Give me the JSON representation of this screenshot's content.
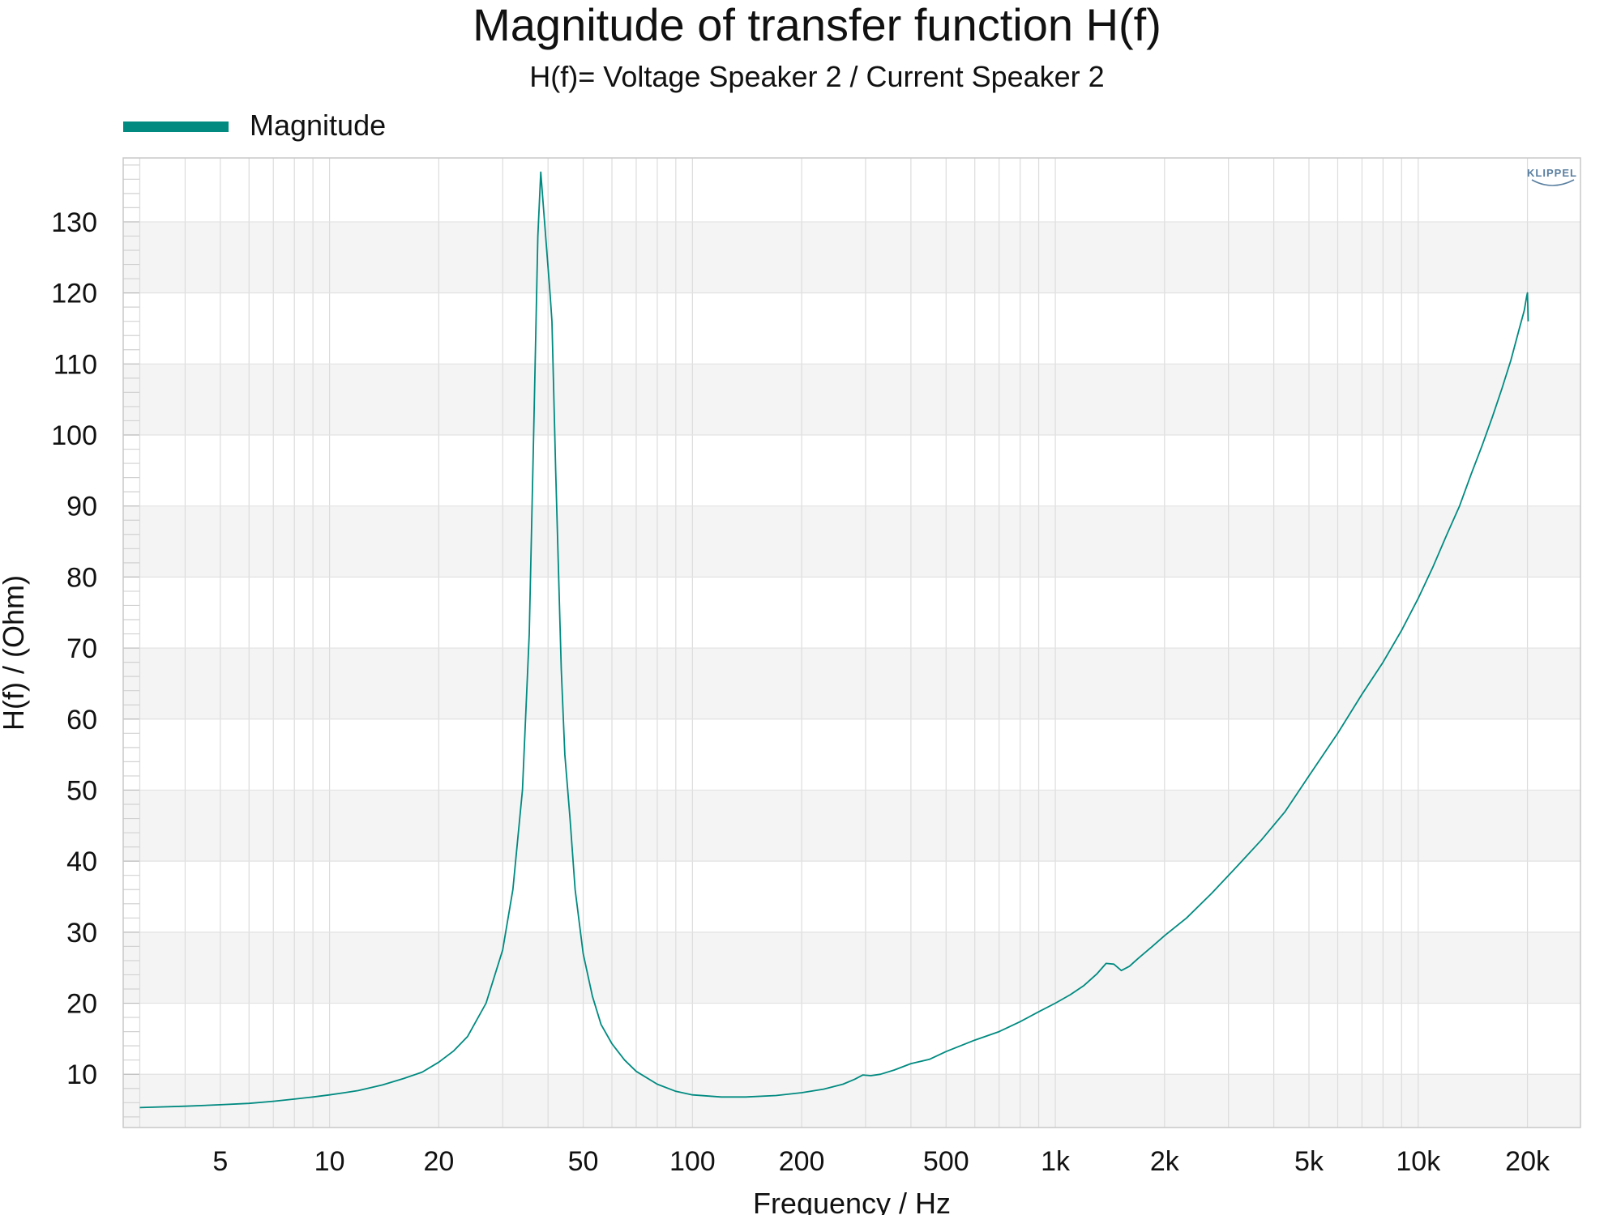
{
  "chart_data": {
    "type": "line",
    "title": "Magnitude of transfer function H(f)",
    "subtitle": "H(f)= Voltage Speaker 2 / Current Speaker 2",
    "xlabel": "Frequency / Hz",
    "ylabel": "H(f) / (Ohm)",
    "xscale": "log",
    "xlim": [
      2.7,
      28000
    ],
    "ylim": [
      2.5,
      139
    ],
    "grid": true,
    "legend_position": "top-left",
    "x_ticks": [
      {
        "value": 5,
        "label": "5"
      },
      {
        "value": 10,
        "label": "10"
      },
      {
        "value": 20,
        "label": "20"
      },
      {
        "value": 50,
        "label": "50"
      },
      {
        "value": 100,
        "label": "100"
      },
      {
        "value": 200,
        "label": "200"
      },
      {
        "value": 500,
        "label": "500"
      },
      {
        "value": 1000,
        "label": "1k"
      },
      {
        "value": 2000,
        "label": "2k"
      },
      {
        "value": 5000,
        "label": "5k"
      },
      {
        "value": 10000,
        "label": "10k"
      },
      {
        "value": 20000,
        "label": "20k"
      }
    ],
    "y_ticks": [
      {
        "value": 10,
        "label": "10"
      },
      {
        "value": 20,
        "label": "20"
      },
      {
        "value": 30,
        "label": "30"
      },
      {
        "value": 40,
        "label": "40"
      },
      {
        "value": 50,
        "label": "50"
      },
      {
        "value": 60,
        "label": "60"
      },
      {
        "value": 70,
        "label": "70"
      },
      {
        "value": 80,
        "label": "80"
      },
      {
        "value": 90,
        "label": "90"
      },
      {
        "value": 100,
        "label": "100"
      },
      {
        "value": 110,
        "label": "110"
      },
      {
        "value": 120,
        "label": "120"
      },
      {
        "value": 130,
        "label": "130"
      }
    ],
    "series": [
      {
        "name": "Magnitude",
        "color": "#008a80",
        "points": [
          [
            3.0,
            5.3
          ],
          [
            4.0,
            5.5
          ],
          [
            5.0,
            5.7
          ],
          [
            6.0,
            5.9
          ],
          [
            7.0,
            6.2
          ],
          [
            8.0,
            6.5
          ],
          [
            9.0,
            6.8
          ],
          [
            10.0,
            7.1
          ],
          [
            11.0,
            7.4
          ],
          [
            12.0,
            7.7
          ],
          [
            14.0,
            8.5
          ],
          [
            16.0,
            9.4
          ],
          [
            18.0,
            10.3
          ],
          [
            20.0,
            11.7
          ],
          [
            22.0,
            13.3
          ],
          [
            24.0,
            15.3
          ],
          [
            27.0,
            20.0
          ],
          [
            30.0,
            27.5
          ],
          [
            32.0,
            36.0
          ],
          [
            34.0,
            50.0
          ],
          [
            35.5,
            72.0
          ],
          [
            36.5,
            100.0
          ],
          [
            37.5,
            128.0
          ],
          [
            38.2,
            137.0
          ],
          [
            39.0,
            131.0
          ],
          [
            40.5,
            120.0
          ],
          [
            41.0,
            116.0
          ],
          [
            42.0,
            95.0
          ],
          [
            43.5,
            67.0
          ],
          [
            44.5,
            55.0
          ],
          [
            46.0,
            46.0
          ],
          [
            47.5,
            36.0
          ],
          [
            50.0,
            27.0
          ],
          [
            53.0,
            21.0
          ],
          [
            56.0,
            17.0
          ],
          [
            60.0,
            14.3
          ],
          [
            65.0,
            12.0
          ],
          [
            70.0,
            10.4
          ],
          [
            80.0,
            8.6
          ],
          [
            90.0,
            7.6
          ],
          [
            100.0,
            7.1
          ],
          [
            120.0,
            6.8
          ],
          [
            140.0,
            6.8
          ],
          [
            170.0,
            7.0
          ],
          [
            200.0,
            7.4
          ],
          [
            230.0,
            7.9
          ],
          [
            260.0,
            8.6
          ],
          [
            280.0,
            9.3
          ],
          [
            295.0,
            9.9
          ],
          [
            310.0,
            9.8
          ],
          [
            330.0,
            10.0
          ],
          [
            360.0,
            10.6
          ],
          [
            400.0,
            11.5
          ],
          [
            450.0,
            12.1
          ],
          [
            500.0,
            13.2
          ],
          [
            600.0,
            14.8
          ],
          [
            700.0,
            16.0
          ],
          [
            800.0,
            17.4
          ],
          [
            900.0,
            18.8
          ],
          [
            1000.0,
            20.0
          ],
          [
            1100.0,
            21.2
          ],
          [
            1200.0,
            22.5
          ],
          [
            1300.0,
            24.1
          ],
          [
            1380.0,
            25.6
          ],
          [
            1450.0,
            25.5
          ],
          [
            1520.0,
            24.6
          ],
          [
            1600.0,
            25.2
          ],
          [
            1700.0,
            26.4
          ],
          [
            1850.0,
            28.0
          ],
          [
            2000.0,
            29.5
          ],
          [
            2300.0,
            32.0
          ],
          [
            2700.0,
            35.5
          ],
          [
            3200.0,
            39.5
          ],
          [
            3700.0,
            43.0
          ],
          [
            4300.0,
            47.0
          ],
          [
            5000.0,
            52.0
          ],
          [
            6000.0,
            58.0
          ],
          [
            7000.0,
            63.5
          ],
          [
            8000.0,
            68.0
          ],
          [
            9000.0,
            72.5
          ],
          [
            10000.0,
            77.0
          ],
          [
            11000.0,
            81.5
          ],
          [
            12000.0,
            86.0
          ],
          [
            13000.0,
            90.0
          ],
          [
            14000.0,
            94.5
          ],
          [
            15000.0,
            98.5
          ],
          [
            16000.0,
            102.5
          ],
          [
            17000.0,
            106.5
          ],
          [
            18000.0,
            110.5
          ],
          [
            19000.0,
            115.0
          ],
          [
            19600.0,
            117.5
          ],
          [
            19900.0,
            119.5
          ],
          [
            20000.0,
            120.0
          ],
          [
            20100.0,
            116.0
          ]
        ]
      }
    ]
  },
  "logo": "KLIPPEL"
}
